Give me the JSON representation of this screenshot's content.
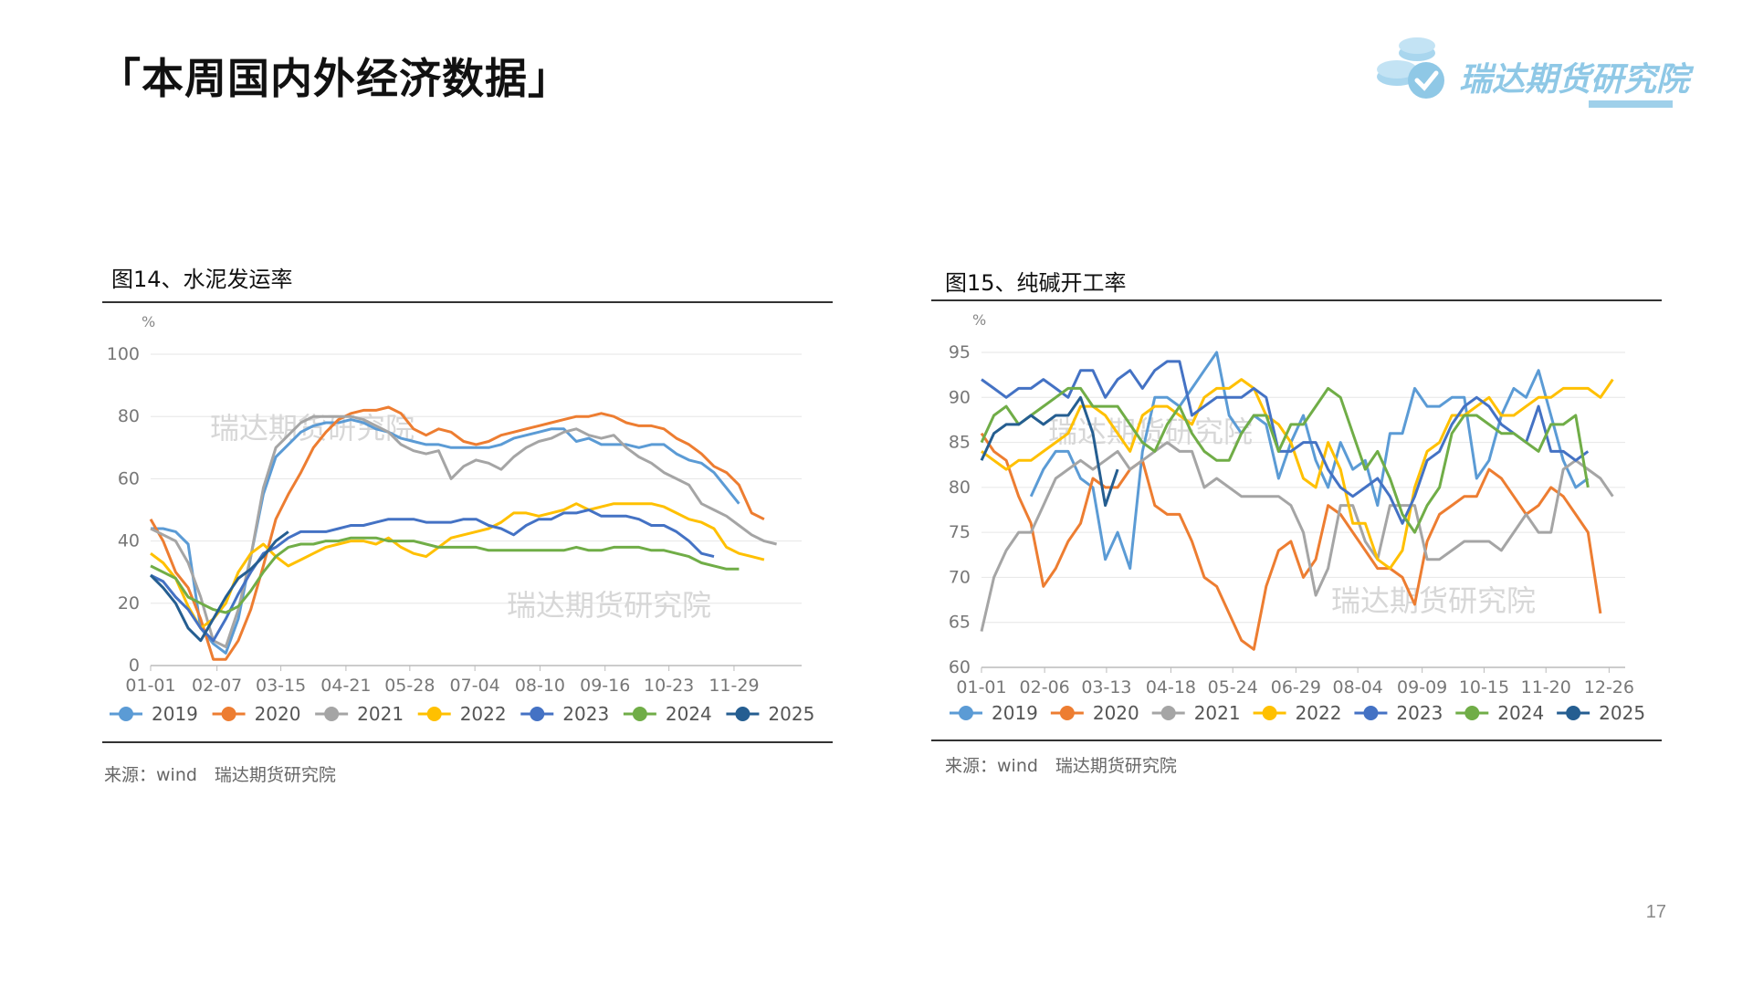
{
  "page": {
    "title": "「本周国内外经济数据」",
    "logo_text": "瑞达期货研究院",
    "page_number": "17",
    "watermark": "瑞达期货研究院"
  },
  "left_panel": {
    "caption": "图14、水泥发运率",
    "source": "来源：wind　瑞达期货研究院"
  },
  "right_panel": {
    "caption": "图15、纯碱开工率",
    "source": "来源：wind　瑞达期货研究院"
  },
  "colors": {
    "2019": "#5b9bd5",
    "2020": "#ed7d31",
    "2021": "#a5a5a5",
    "2022": "#ffc000",
    "2023": "#4472c4",
    "2024": "#70ad47",
    "2025": "#255e91",
    "grid": "#e6e6e6",
    "rule": "#333333",
    "logo": "#8fc8e6"
  },
  "chart_data": [
    {
      "type": "line",
      "title": "",
      "ylabel": "%",
      "ylim": [
        0,
        100
      ],
      "yticks": [
        0,
        20,
        40,
        60,
        80,
        100
      ],
      "xlim": [
        0,
        52
      ],
      "xticks": [
        {
          "x": 0,
          "label": "01-01"
        },
        {
          "x": 5.3,
          "label": "02-07"
        },
        {
          "x": 10.4,
          "label": "03-15"
        },
        {
          "x": 15.6,
          "label": "04-21"
        },
        {
          "x": 20.7,
          "label": "05-28"
        },
        {
          "x": 25.9,
          "label": "07-04"
        },
        {
          "x": 31.1,
          "label": "08-10"
        },
        {
          "x": 36.3,
          "label": "09-16"
        },
        {
          "x": 41.4,
          "label": "10-23"
        },
        {
          "x": 46.6,
          "label": "11-29"
        }
      ],
      "series": [
        {
          "name": "2019",
          "values": [
            44,
            44,
            43,
            39,
            12,
            7,
            4,
            15,
            35,
            55,
            67,
            71,
            75,
            77,
            78,
            78,
            79,
            78,
            76,
            75,
            73,
            72,
            71,
            71,
            70,
            70,
            70,
            70,
            71,
            73,
            74,
            75,
            76,
            76,
            72,
            73,
            71,
            71,
            71,
            70,
            71,
            71,
            68,
            66,
            65,
            62,
            57,
            52
          ]
        },
        {
          "name": "2020",
          "values": [
            47,
            40,
            30,
            25,
            15,
            2,
            2,
            8,
            18,
            32,
            47,
            55,
            62,
            70,
            75,
            79,
            81,
            82,
            82,
            83,
            81,
            76,
            74,
            76,
            75,
            72,
            71,
            72,
            74,
            75,
            76,
            77,
            78,
            79,
            80,
            80,
            81,
            80,
            78,
            77,
            77,
            76,
            73,
            71,
            68,
            64,
            62,
            58,
            49,
            47
          ]
        },
        {
          "name": "2021",
          "values": [
            44,
            42,
            40,
            33,
            22,
            8,
            6,
            18,
            35,
            57,
            70,
            74,
            78,
            80,
            80,
            80,
            80,
            79,
            77,
            75,
            71,
            69,
            68,
            69,
            60,
            64,
            66,
            65,
            63,
            67,
            70,
            72,
            73,
            75,
            76,
            74,
            73,
            74,
            70,
            67,
            65,
            62,
            60,
            58,
            52,
            50,
            48,
            45,
            42,
            40,
            39
          ]
        },
        {
          "name": "2022",
          "values": [
            36,
            33,
            28,
            19,
            12,
            15,
            20,
            30,
            36,
            39,
            35,
            32,
            34,
            36,
            38,
            39,
            40,
            40,
            39,
            41,
            38,
            36,
            35,
            38,
            41,
            42,
            43,
            44,
            46,
            49,
            49,
            48,
            49,
            50,
            52,
            50,
            51,
            52,
            52,
            52,
            52,
            51,
            49,
            47,
            46,
            44,
            38,
            36,
            35,
            34
          ]
        },
        {
          "name": "2023",
          "values": [
            29,
            27,
            22,
            18,
            12,
            8,
            15,
            23,
            30,
            36,
            38,
            41,
            43,
            43,
            43,
            44,
            45,
            45,
            46,
            47,
            47,
            47,
            46,
            46,
            46,
            47,
            47,
            45,
            44,
            42,
            45,
            47,
            47,
            49,
            49,
            50,
            48,
            48,
            48,
            47,
            45,
            45,
            43,
            40,
            36,
            35
          ]
        },
        {
          "name": "2024",
          "values": [
            32,
            30,
            28,
            22,
            20,
            18,
            17,
            19,
            24,
            30,
            35,
            38,
            39,
            39,
            40,
            40,
            41,
            41,
            41,
            40,
            40,
            40,
            39,
            38,
            38,
            38,
            38,
            37,
            37,
            37,
            37,
            37,
            37,
            37,
            38,
            37,
            37,
            38,
            38,
            38,
            37,
            37,
            36,
            35,
            33,
            32,
            31,
            31
          ]
        },
        {
          "name": "2025",
          "values": [
            29,
            25,
            20,
            12,
            8,
            15,
            22,
            28,
            31,
            35,
            40,
            43
          ]
        }
      ]
    },
    {
      "type": "line",
      "title": "",
      "ylabel": "%",
      "ylim": [
        60,
        95
      ],
      "yticks": [
        60,
        65,
        70,
        75,
        80,
        85,
        90,
        95
      ],
      "xlim": [
        0,
        52
      ],
      "xticks": [
        {
          "x": 0,
          "label": "01-01"
        },
        {
          "x": 5.1,
          "label": "02-06"
        },
        {
          "x": 10.1,
          "label": "03-13"
        },
        {
          "x": 15.3,
          "label": "04-18"
        },
        {
          "x": 20.3,
          "label": "05-24"
        },
        {
          "x": 25.4,
          "label": "06-29"
        },
        {
          "x": 30.4,
          "label": "08-04"
        },
        {
          "x": 35.6,
          "label": "09-09"
        },
        {
          "x": 40.6,
          "label": "10-15"
        },
        {
          "x": 45.6,
          "label": "11-20"
        },
        {
          "x": 50.7,
          "label": "12-26"
        }
      ],
      "series": [
        {
          "name": "2019",
          "values": [
            null,
            null,
            null,
            null,
            79,
            82,
            84,
            84,
            81,
            80,
            72,
            75,
            71,
            84,
            90,
            90,
            89,
            91,
            93,
            95,
            88,
            86,
            88,
            87,
            81,
            85,
            88,
            83,
            80,
            85,
            82,
            83,
            78,
            86,
            86,
            91,
            89,
            89,
            90,
            90,
            81,
            83,
            88,
            91,
            90,
            93,
            88,
            83,
            80,
            81
          ]
        },
        {
          "name": "2020",
          "values": [
            86,
            84,
            83,
            79,
            76,
            69,
            71,
            74,
            76,
            81,
            80,
            80,
            82,
            83,
            78,
            77,
            77,
            74,
            70,
            69,
            66,
            63,
            62,
            69,
            73,
            74,
            70,
            72,
            78,
            77,
            75,
            73,
            71,
            71,
            70,
            67,
            74,
            77,
            78,
            79,
            79,
            82,
            81,
            79,
            77,
            78,
            80,
            79,
            77,
            75,
            66
          ]
        },
        {
          "name": "2021",
          "values": [
            64,
            70,
            73,
            75,
            75,
            78,
            81,
            82,
            83,
            82,
            83,
            84,
            82,
            83,
            84,
            85,
            84,
            84,
            80,
            81,
            80,
            79,
            79,
            79,
            79,
            78,
            75,
            68,
            71,
            78,
            78,
            74,
            72,
            78,
            78,
            78,
            72,
            72,
            73,
            74,
            74,
            74,
            73,
            75,
            77,
            75,
            75,
            82,
            83,
            82,
            81,
            79
          ]
        },
        {
          "name": "2022",
          "values": [
            84,
            83,
            82,
            83,
            83,
            84,
            85,
            86,
            89,
            89,
            88,
            86,
            84,
            88,
            89,
            89,
            88,
            87,
            90,
            91,
            91,
            92,
            91,
            88,
            87,
            85,
            81,
            80,
            85,
            82,
            76,
            76,
            72,
            71,
            73,
            80,
            84,
            85,
            88,
            88,
            89,
            90,
            88,
            88,
            89,
            90,
            90,
            91,
            91,
            91,
            90,
            92
          ]
        },
        {
          "name": "2023",
          "values": [
            92,
            91,
            90,
            91,
            91,
            92,
            91,
            90,
            93,
            93,
            90,
            92,
            93,
            91,
            93,
            94,
            94,
            88,
            89,
            90,
            90,
            90,
            91,
            90,
            84,
            84,
            85,
            85,
            82,
            80,
            79,
            80,
            81,
            79,
            76,
            79,
            83,
            84,
            87,
            89,
            90,
            89,
            87,
            86,
            85,
            89,
            84,
            84,
            83,
            84
          ]
        },
        {
          "name": "2024",
          "values": [
            85,
            88,
            89,
            87,
            88,
            89,
            90,
            91,
            91,
            89,
            89,
            89,
            87,
            85,
            84,
            87,
            89,
            86,
            84,
            83,
            83,
            86,
            88,
            88,
            84,
            87,
            87,
            89,
            91,
            90,
            86,
            82,
            84,
            81,
            77,
            75,
            78,
            80,
            86,
            88,
            88,
            87,
            86,
            86,
            85,
            84,
            87,
            87,
            88,
            80
          ]
        },
        {
          "name": "2025",
          "values": [
            83,
            86,
            87,
            87,
            88,
            87,
            88,
            88,
            90,
            86,
            78,
            82
          ]
        }
      ]
    }
  ]
}
